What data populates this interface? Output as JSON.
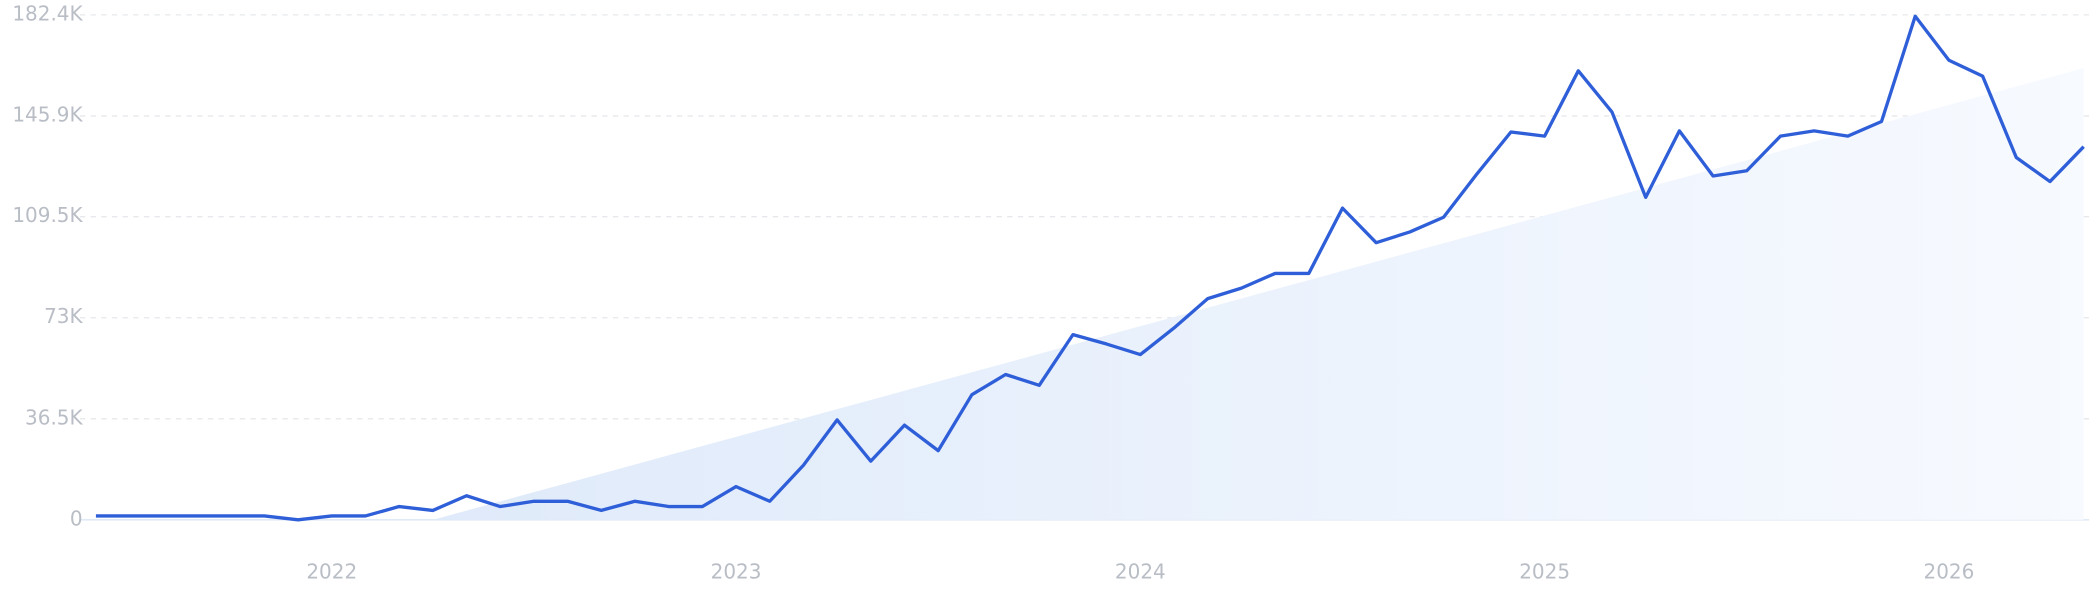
{
  "chart_data": {
    "type": "line",
    "categories": [
      null,
      null,
      null,
      null,
      null,
      null,
      null,
      "2022",
      null,
      null,
      null,
      null,
      null,
      null,
      null,
      null,
      null,
      null,
      null,
      "2023",
      null,
      null,
      null,
      null,
      null,
      null,
      null,
      null,
      null,
      null,
      null,
      "2024",
      null,
      null,
      null,
      null,
      null,
      null,
      null,
      null,
      null,
      null,
      null,
      "2025",
      null,
      null,
      null,
      null,
      null,
      null,
      null,
      null,
      null,
      null,
      null,
      "2026",
      null,
      null,
      null,
      null
    ],
    "series": [
      {
        "color": "#2f5fd8",
        "values": [
          1400,
          1400,
          1400,
          1400,
          1400,
          1400,
          0,
          1400,
          1400,
          4800,
          3400,
          8700,
          4800,
          6700,
          6700,
          3400,
          6700,
          4800,
          4800,
          12000,
          6700,
          19700,
          36100,
          21200,
          34200,
          25000,
          45200,
          52500,
          48600,
          66900,
          63500,
          59700,
          69300,
          79900,
          83700,
          89000,
          89000,
          112600,
          100100,
          104000,
          109300,
          125100,
          140100,
          138600,
          162200,
          147300,
          116500,
          140500,
          124200,
          126100,
          138600,
          140500,
          138600,
          143900,
          181900,
          166000,
          160300,
          130900,
          122200,
          134800
        ]
      },
      {
        "color": "#e4eefb",
        "kind": "area",
        "values": [
          null,
          null,
          null,
          null,
          null,
          null,
          null,
          null,
          null,
          null,
          0,
          3331,
          6662,
          9993,
          13324,
          16655,
          19986,
          23317,
          26648,
          29979,
          33310,
          36641,
          39972,
          43303,
          46634,
          49965,
          53296,
          56627,
          59958,
          63289,
          66620,
          69951,
          73282,
          76613,
          79944,
          83275,
          86606,
          89937,
          93268,
          96599,
          99930,
          103261,
          106592,
          109923,
          113254,
          116585,
          119916,
          123247,
          126578,
          129909,
          133240,
          136571,
          139902,
          143233,
          146564,
          149895,
          153226,
          156557,
          159888,
          163219
        ]
      }
    ],
    "ylim": [
      0,
      182400
    ],
    "yticks": [
      0,
      {
        "value": 36500,
        "label": "36.5K"
      },
      {
        "value": 73000,
        "label": "73K"
      },
      {
        "value": 109500,
        "label": "109.5K"
      },
      {
        "value": 145900,
        "label": "145.9K"
      },
      {
        "value": 182400,
        "label": "182.4K"
      }
    ],
    "grid": true
  }
}
